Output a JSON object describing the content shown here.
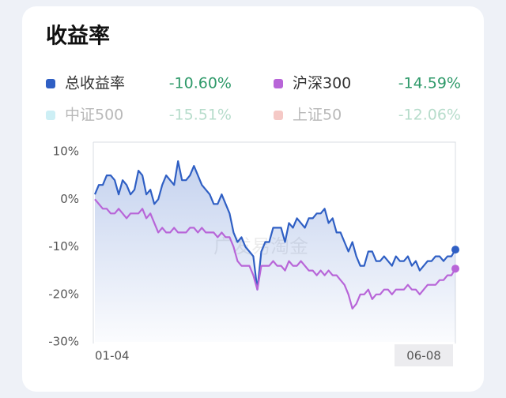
{
  "chart_data": {
    "type": "line",
    "title": "收益率",
    "watermark": "广发易淘金",
    "categories": [
      "01-04",
      null,
      null,
      null,
      null,
      null,
      null,
      null,
      null,
      null,
      null,
      null,
      null,
      null,
      null,
      null,
      null,
      null,
      null,
      null,
      null,
      null,
      null,
      null,
      null,
      null,
      null,
      null,
      null,
      null,
      null,
      null,
      null,
      null,
      null,
      null,
      null,
      null,
      null,
      null,
      null,
      null,
      null,
      null,
      null,
      null,
      null,
      null,
      null,
      null,
      null,
      null,
      null,
      null,
      null,
      null,
      null,
      null,
      null,
      null,
      null,
      null,
      null,
      null,
      null,
      null,
      null,
      null,
      null,
      null,
      null,
      null,
      null,
      null,
      null,
      null,
      null,
      null,
      null,
      null,
      null,
      null,
      null,
      null,
      null,
      null,
      null,
      null,
      null,
      null,
      null,
      "06-08"
    ],
    "series": [
      {
        "name": "总收益率",
        "color": "#2f5fc4",
        "summary": "-10.60%",
        "visible": true,
        "area": true,
        "values": [
          1,
          3,
          3,
          5,
          5,
          4,
          1,
          4,
          3,
          1,
          2,
          6,
          5,
          1,
          2,
          -1,
          0,
          3,
          5,
          4,
          3,
          8,
          4,
          4,
          5,
          7,
          5,
          3,
          2,
          1,
          -1,
          -1,
          1,
          -1,
          -3,
          -7,
          -9,
          -8,
          -10,
          -11,
          -12,
          -19,
          -11,
          -9,
          -9,
          -6,
          -6,
          -6,
          -9,
          -5,
          -6,
          -4,
          -5,
          -6,
          -4,
          -4,
          -3,
          -3,
          -2,
          -5,
          -4,
          -7,
          -7,
          -9,
          -11,
          -9,
          -12,
          -14,
          -14,
          -11,
          -11,
          -13,
          -13,
          -12,
          -13,
          -14,
          -12,
          -13,
          -13,
          -12,
          -14,
          -13,
          -15,
          -14,
          -13,
          -13,
          -12,
          -12,
          -13,
          -12,
          -12,
          -10.6
        ]
      },
      {
        "name": "沪深300",
        "color": "#b865d8",
        "summary": "-14.59%",
        "visible": true,
        "area": false,
        "values": [
          0,
          -1,
          -2,
          -2,
          -3,
          -3,
          -2,
          -3,
          -4,
          -3,
          -3,
          -3,
          -2,
          -4,
          -3,
          -5,
          -7,
          -6,
          -7,
          -7,
          -6,
          -7,
          -7,
          -7,
          -6,
          -6,
          -7,
          -6,
          -7,
          -7,
          -7,
          -8,
          -7,
          -8,
          -8,
          -10,
          -13,
          -14,
          -14,
          -14,
          -16,
          -19,
          -14,
          -14,
          -14,
          -13,
          -14,
          -14,
          -15,
          -13,
          -14,
          -14,
          -13,
          -14,
          -15,
          -15,
          -16,
          -15,
          -16,
          -15,
          -16,
          -16,
          -17,
          -18,
          -20,
          -23,
          -22,
          -20,
          -20,
          -19,
          -21,
          -20,
          -20,
          -19,
          -19,
          -20,
          -19,
          -19,
          -19,
          -18,
          -19,
          -19,
          -20,
          -19,
          -18,
          -18,
          -18,
          -17,
          -17,
          -16,
          -16,
          -14.6
        ]
      },
      {
        "name": "中证500",
        "color": "#cdeff5",
        "summary": "-15.51%",
        "visible": false
      },
      {
        "name": "上证50",
        "color": "#f5c9c6",
        "summary": "-12.06%",
        "visible": false
      }
    ],
    "ylim": [
      -30,
      10
    ],
    "yticks": [
      {
        "value": 10,
        "label": "10%"
      },
      {
        "value": 0,
        "label": "0%"
      },
      {
        "value": -10,
        "label": "-10%"
      },
      {
        "value": -20,
        "label": "-20%"
      },
      {
        "value": -30,
        "label": "-30%"
      }
    ]
  }
}
